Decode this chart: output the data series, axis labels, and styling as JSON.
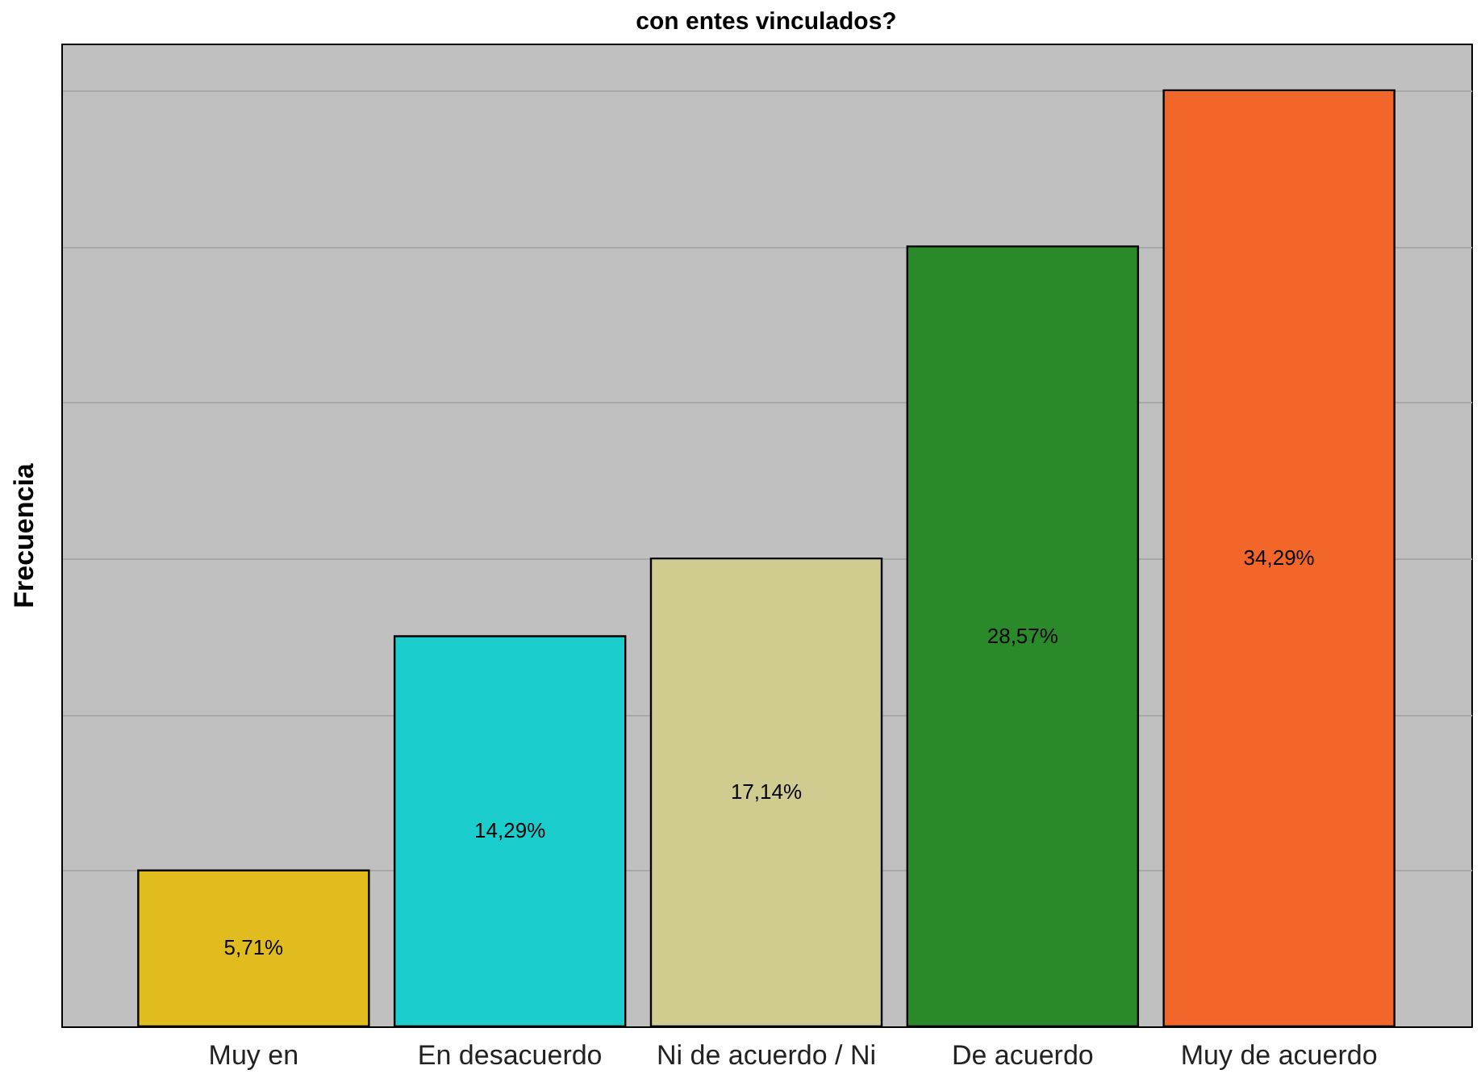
{
  "chart_data": {
    "type": "bar",
    "title": "con entes vinculados?",
    "ylabel": "Frecuencia",
    "categories": [
      "Muy en",
      "En desacuerdo",
      "Ni de acuerdo / Ni",
      "De acuerdo",
      "Muy de acuerdo"
    ],
    "values": [
      5.71,
      14.29,
      17.14,
      28.57,
      34.29
    ],
    "colors": [
      "#e0bc1e",
      "#1ccdcd",
      "#d0cb8f",
      "#2a8a2a",
      "#f2662a"
    ],
    "value_labels": [
      "5,71%",
      "14,29%",
      "17,14%",
      "28,57%",
      "34,29%"
    ],
    "ylim": [
      0,
      36
    ],
    "yticks": [
      {
        "value": 0,
        "label": null
      },
      {
        "value": 5.71,
        "label": null
      },
      {
        "value": 11.43,
        "label": null
      },
      {
        "value": 17.14,
        "label": null
      },
      {
        "value": 22.86,
        "label": null
      },
      {
        "value": 28.57,
        "label": null
      },
      {
        "value": 34.29,
        "label": null
      }
    ],
    "grid": "y",
    "tick_labels": "x",
    "legend": false
  }
}
